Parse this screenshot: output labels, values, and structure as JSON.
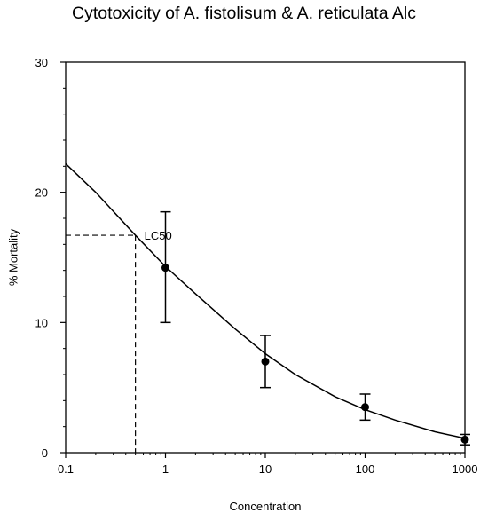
{
  "chart_data": {
    "type": "scatter",
    "title": "Cytotoxicity of A. fistolisum & A. reticulata Alc",
    "xlabel": "Concentration",
    "ylabel": "% Mortality",
    "x_scale": "log",
    "xlim": [
      0.1,
      1000
    ],
    "ylim": [
      0,
      30
    ],
    "x_ticks": [
      0.1,
      1,
      10,
      100,
      1000
    ],
    "x_tick_labels": [
      "0.1",
      "1",
      "10",
      "100",
      "1000"
    ],
    "y_ticks": [
      0,
      10,
      20,
      30
    ],
    "y_tick_labels": [
      "0",
      "10",
      "20",
      "30"
    ],
    "grid": false,
    "points": [
      {
        "x": 1,
        "y": 14.2,
        "err_low": 10.0,
        "err_high": 18.5
      },
      {
        "x": 10,
        "y": 7.0,
        "err_low": 5.0,
        "err_high": 9.0
      },
      {
        "x": 100,
        "y": 3.5,
        "err_low": 2.5,
        "err_high": 4.5
      },
      {
        "x": 1000,
        "y": 1.0,
        "err_low": 0.6,
        "err_high": 1.4
      }
    ],
    "fit_curve": {
      "x": [
        0.1,
        0.2,
        0.5,
        1,
        2,
        5,
        10,
        20,
        50,
        100,
        200,
        500,
        1000
      ],
      "y": [
        22.2,
        20.0,
        16.7,
        14.3,
        12.2,
        9.5,
        7.6,
        6.0,
        4.3,
        3.3,
        2.5,
        1.6,
        1.1
      ]
    },
    "reference": {
      "label": "LC50",
      "x": 0.5,
      "y": 16.7
    }
  }
}
